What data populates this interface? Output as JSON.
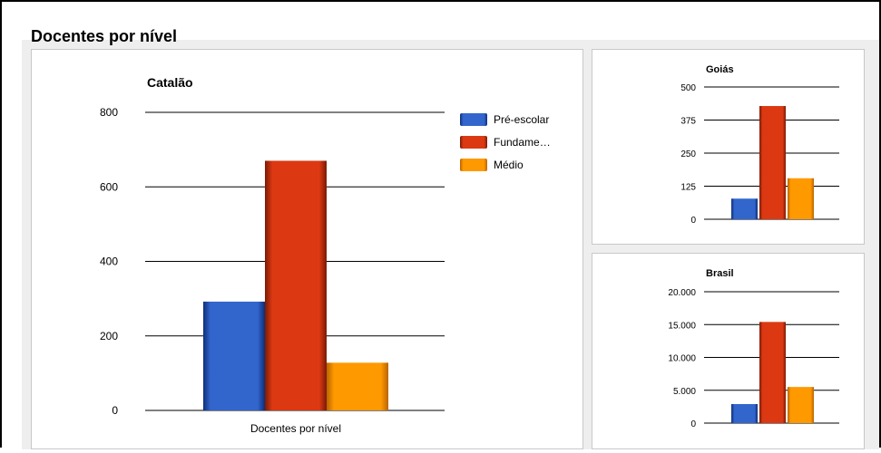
{
  "section": {
    "title": "Docentes por nível"
  },
  "chart_data": [
    {
      "type": "bar",
      "title": "Catalão",
      "xlabel": "Docentes por nível",
      "ylabel": "",
      "ylim": [
        0,
        800
      ],
      "yticks": [
        "800",
        "600",
        "400",
        "200",
        "0"
      ],
      "ytick_values": [
        800,
        600,
        400,
        200,
        0
      ],
      "legend_position": "right",
      "categories": [
        "Docentes por nível"
      ],
      "series": [
        {
          "name": "Pré-escolar",
          "values": [
            292
          ]
        },
        {
          "name": "Fundame…",
          "values": [
            670
          ]
        },
        {
          "name": "Médio",
          "values": [
            128
          ]
        }
      ]
    },
    {
      "type": "bar",
      "title": "Goiás",
      "ylim": [
        0,
        500
      ],
      "yticks": [
        "500",
        "375",
        "250",
        "125",
        "0"
      ],
      "ytick_values": [
        500,
        375,
        250,
        125,
        0
      ],
      "series": [
        {
          "values": [
            78
          ]
        },
        {
          "values": [
            428
          ]
        },
        {
          "values": [
            155
          ]
        }
      ]
    },
    {
      "type": "bar",
      "title": "Brasil",
      "ylim": [
        0,
        20000
      ],
      "yticks": [
        "20.000",
        "15.000",
        "10.000",
        "5.000",
        "0"
      ],
      "ytick_values": [
        20000,
        15000,
        10000,
        5000,
        0
      ],
      "series": [
        {
          "values": [
            2900
          ]
        },
        {
          "values": [
            15400
          ]
        },
        {
          "values": [
            5500
          ]
        }
      ]
    }
  ],
  "colors": {
    "series": [
      "#3366cc",
      "#dc3912",
      "#ff9900"
    ],
    "series_dark": [
      "#0c2f7a",
      "#7a1a05",
      "#b86400"
    ]
  }
}
